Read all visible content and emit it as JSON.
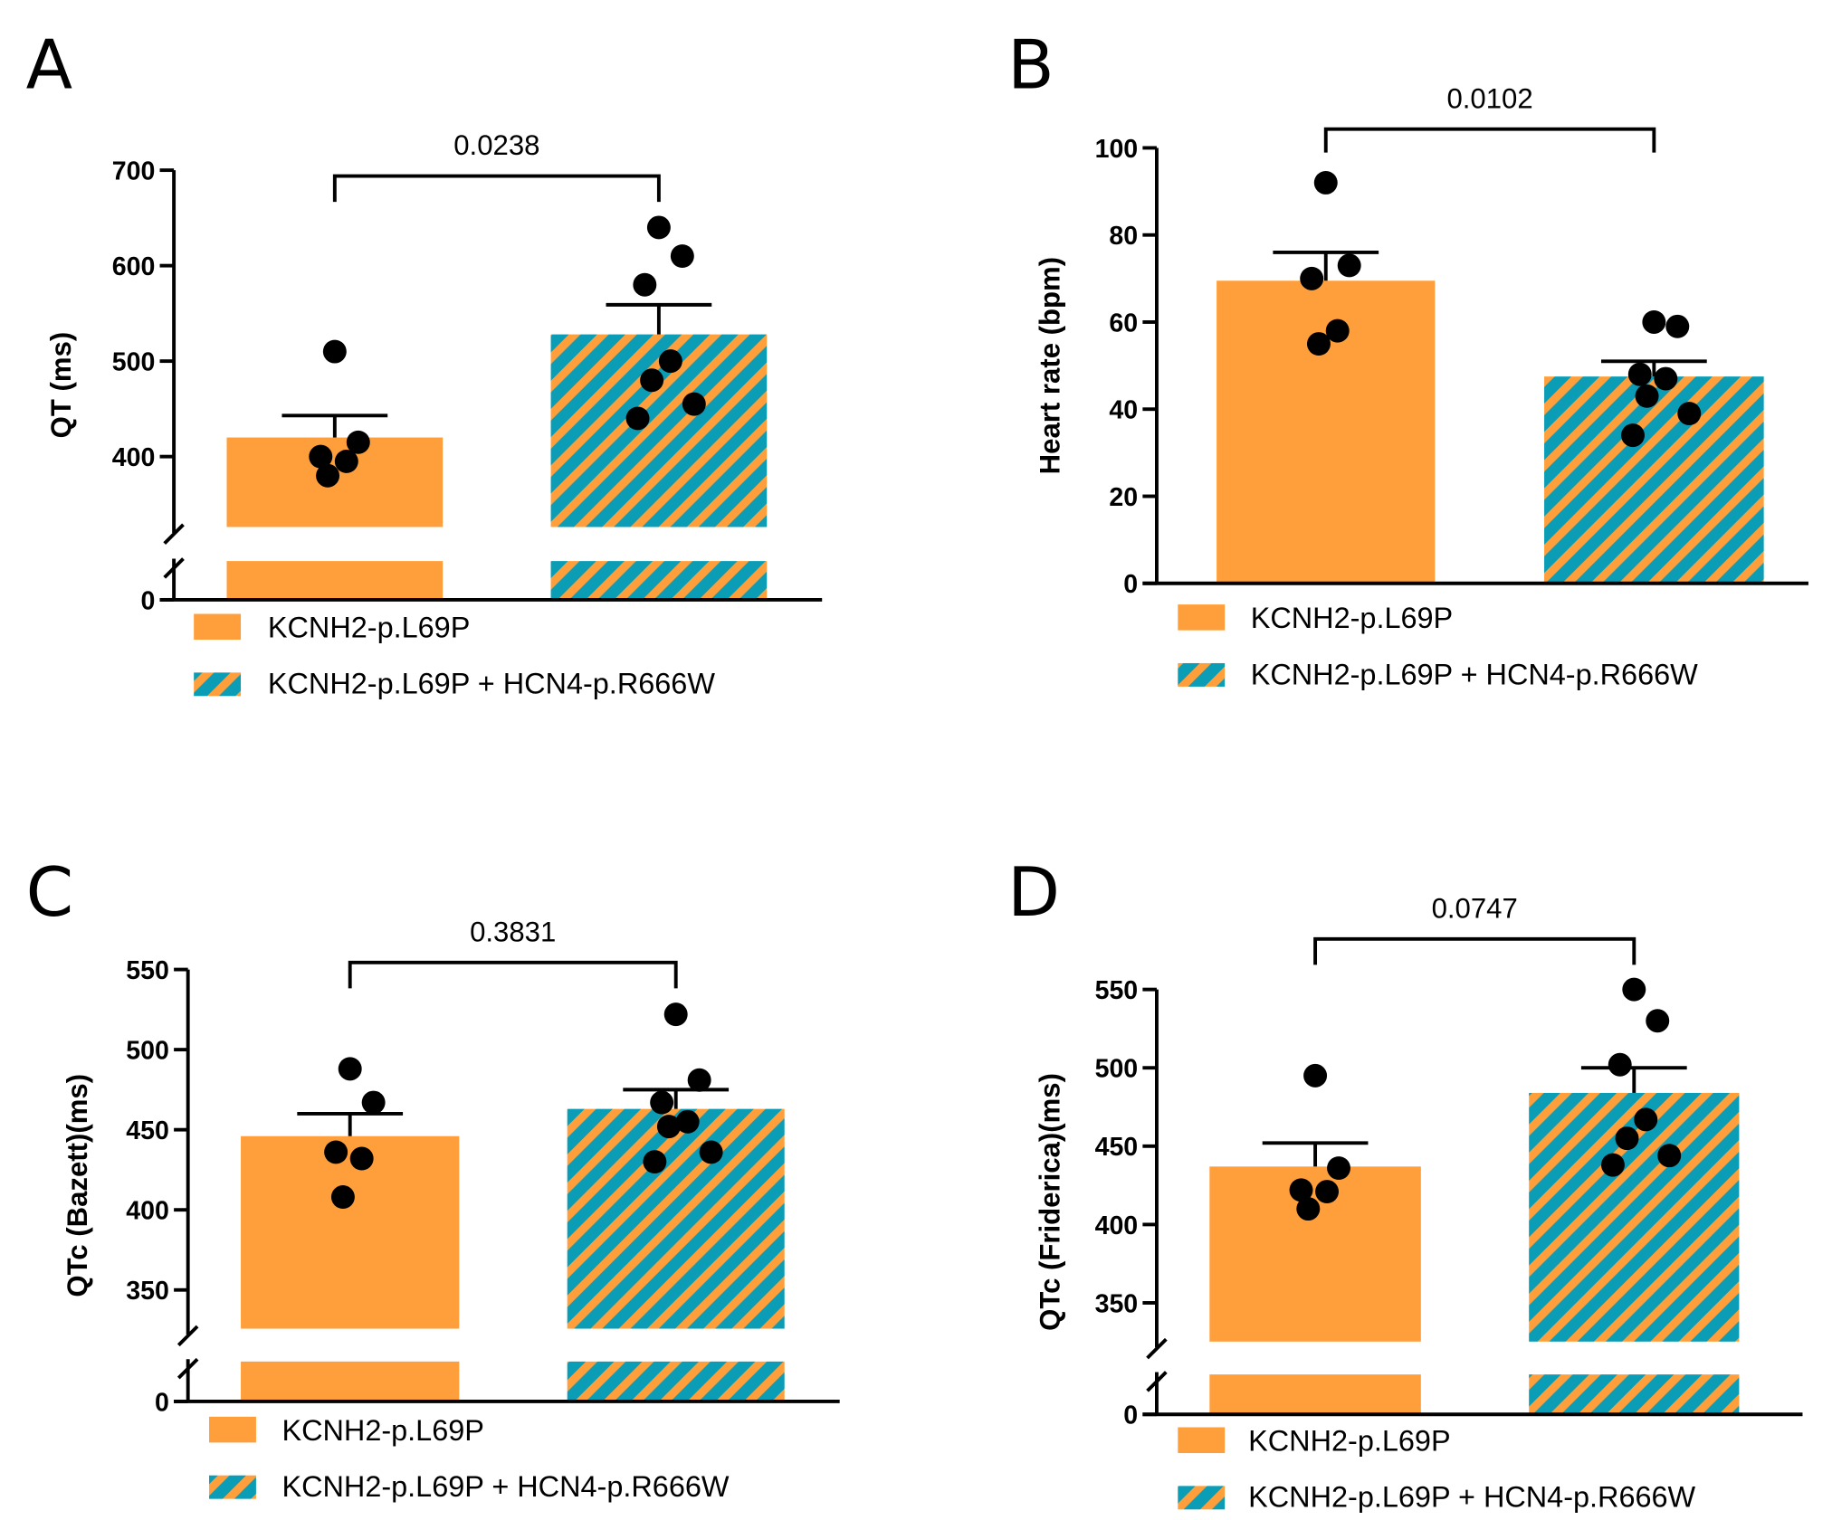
{
  "colors": {
    "orange": "#ff9f3c",
    "teal": "#0a9db5",
    "black": "#000000"
  },
  "legend": [
    "KCNH2-p.L69P",
    "KCNH2-p.L69P + HCN4-p.R666W"
  ],
  "chart_data": [
    {
      "panel": "A",
      "type": "bar",
      "ylabel": "QT (ms)",
      "yticks": [
        0,
        400,
        500,
        600,
        700
      ],
      "ylim": [
        0,
        700
      ],
      "axis_break": [
        0,
        330
      ],
      "categories": [
        "KCNH2-p.L69P",
        "KCNH2-p.L69P + HCN4-p.R666W"
      ],
      "means": [
        420,
        528
      ],
      "sem_upper": [
        443,
        559
      ],
      "points": [
        [
          510,
          415,
          400,
          395,
          380
        ],
        [
          640,
          610,
          580,
          500,
          480,
          455,
          440
        ]
      ],
      "p_value": "0.0238"
    },
    {
      "panel": "B",
      "type": "bar",
      "ylabel": "Heart rate (bpm)",
      "yticks": [
        0,
        20,
        40,
        60,
        80,
        100
      ],
      "ylim": [
        0,
        100
      ],
      "axis_break": null,
      "categories": [
        "KCNH2-p.L69P",
        "KCNH2-p.L69P + HCN4-p.R666W"
      ],
      "means": [
        69.5,
        47.5
      ],
      "sem_upper": [
        76,
        51
      ],
      "points": [
        [
          92,
          73,
          70,
          58,
          55
        ],
        [
          60,
          59,
          48,
          47,
          43,
          39,
          34
        ]
      ],
      "p_value": "0.0102"
    },
    {
      "panel": "C",
      "type": "bar",
      "ylabel": "QTc (Bazett)(ms)",
      "yticks": [
        0,
        350,
        400,
        450,
        500,
        550
      ],
      "ylim": [
        0,
        550
      ],
      "axis_break": [
        0,
        325
      ],
      "categories": [
        "KCNH2-p.L69P",
        "KCNH2-p.L69P + HCN4-p.R666W"
      ],
      "means": [
        446,
        463
      ],
      "sem_upper": [
        460,
        475
      ],
      "points": [
        [
          488,
          467,
          436,
          432,
          408
        ],
        [
          522,
          481,
          467,
          455,
          452,
          436,
          430
        ]
      ],
      "p_value": "0.3831"
    },
    {
      "panel": "D",
      "type": "bar",
      "ylabel": "QTc (Friderica)(ms)",
      "yticks": [
        0,
        350,
        400,
        450,
        500,
        550
      ],
      "ylim": [
        0,
        550
      ],
      "axis_break": [
        0,
        325
      ],
      "categories": [
        "KCNH2-p.L69P",
        "KCNH2-p.L69P + HCN4-p.R666W"
      ],
      "means": [
        437,
        484
      ],
      "sem_upper": [
        452,
        500
      ],
      "points": [
        [
          495,
          436,
          422,
          421,
          410
        ],
        [
          550,
          530,
          502,
          467,
          455,
          444,
          438
        ]
      ],
      "p_value": "0.0747"
    }
  ]
}
